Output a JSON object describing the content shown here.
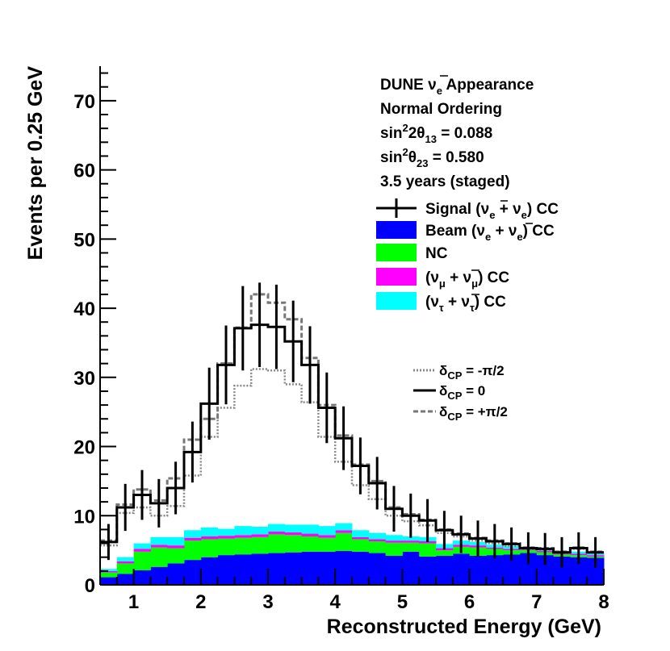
{
  "chart_data": {
    "type": "histogram",
    "title": "DUNE ν̄e Appearance",
    "xlabel": "Reconstructed Energy (GeV)",
    "ylabel": "Events per 0.25 GeV",
    "xlim": [
      0.5,
      8
    ],
    "ylim": [
      0,
      75
    ],
    "x_ticks": [
      "1",
      "2",
      "3",
      "4",
      "5",
      "6",
      "7",
      "8"
    ],
    "y_ticks": [
      "0",
      "10",
      "20",
      "30",
      "40",
      "50",
      "60",
      "70"
    ],
    "bin_width": 0.25,
    "bin_edges_start": 0.5,
    "info": {
      "line1_main": "DUNE ",
      "line1_nu": "ν",
      "line1_sub": "e",
      "line1_rest": " Appearance",
      "line2": "Normal Ordering",
      "line3_a": "sin",
      "line3_sup": "2",
      "line3_b": "2θ",
      "line3_sub": "13",
      "line3_c": " = 0.088",
      "line4_a": "sin",
      "line4_sup": "2",
      "line4_b": "θ",
      "line4_sub": "23",
      "line4_c": " = 0.580",
      "line5": "3.5 years (staged)"
    },
    "legend": [
      {
        "key": "signal",
        "a": "Signal (",
        "nu1": "ν",
        "s1": "e",
        "mid": " + ",
        "nu2": "ν",
        "s2": "e",
        "end": ") CC",
        "color": "#000000"
      },
      {
        "key": "beam",
        "a": "Beam (",
        "nu1": "ν",
        "s1": "e",
        "mid": " + ",
        "nu2": "ν",
        "s2": "e",
        "end": ") CC",
        "color": "#0000ff"
      },
      {
        "key": "nc",
        "a": "NC",
        "nu1": "",
        "s1": "",
        "mid": "",
        "nu2": "",
        "s2": "",
        "end": "",
        "color": "#00ff00"
      },
      {
        "key": "numu",
        "a": "(",
        "nu1": "ν",
        "s1": "μ",
        "mid": " + ",
        "nu2": "ν",
        "s2": "μ",
        "end": ") CC",
        "color": "#ff00ff"
      },
      {
        "key": "nutau",
        "a": "(",
        "nu1": "ν",
        "s1": "τ",
        "mid": " + ",
        "nu2": "ν",
        "s2": "τ",
        "end": ") CC",
        "color": "#00ffff"
      }
    ],
    "delta_legend": [
      {
        "key": "minus",
        "delta": "δ",
        "sub": "CP",
        "rest": " = -π/2",
        "style": "dotted"
      },
      {
        "key": "zero",
        "delta": "δ",
        "sub": "CP",
        "rest": " = 0",
        "style": "solid"
      },
      {
        "key": "plus",
        "delta": "δ",
        "sub": "CP",
        "rest": " = +π/2",
        "style": "dashed"
      }
    ],
    "series": [
      {
        "name": "Beam (νe + ν̄e) CC",
        "color": "#0000ff",
        "values": [
          1.1,
          1.6,
          2.1,
          2.6,
          3.1,
          3.6,
          4.0,
          4.3,
          4.4,
          4.5,
          4.6,
          4.7,
          4.8,
          4.8,
          4.9,
          4.8,
          4.6,
          4.2,
          4.8,
          4.1,
          4.2,
          4.5,
          4.2,
          4.3,
          4.4,
          4.6,
          4.3,
          4.1,
          4.0,
          3.9
        ]
      },
      {
        "name": "NC",
        "color": "#00ff00",
        "values": [
          0.7,
          1.5,
          2.7,
          2.8,
          2.2,
          2.8,
          2.6,
          2.4,
          2.4,
          2.4,
          2.7,
          2.5,
          2.2,
          2.0,
          2.6,
          1.8,
          1.7,
          1.9,
          1.3,
          1.9,
          0.8,
          1.0,
          1.2,
          0.9,
          0.6,
          0.4,
          0.4,
          0.3,
          0.3,
          0.2
        ]
      },
      {
        "name": "(νμ + ν̄μ) CC",
        "color": "#ff00ff",
        "values": [
          0.2,
          0.3,
          0.4,
          0.4,
          0.4,
          0.4,
          0.4,
          0.4,
          0.4,
          0.4,
          0.4,
          0.4,
          0.4,
          0.4,
          0.4,
          0.3,
          0.3,
          0.3,
          0.3,
          0.3,
          0.3,
          0.3,
          0.3,
          0.2,
          0.2,
          0.2,
          0.2,
          0.2,
          0.2,
          0.2
        ]
      },
      {
        "name": "(ντ + ν̄τ) CC",
        "color": "#00ffff",
        "values": [
          0.3,
          0.6,
          0.8,
          1.1,
          1.2,
          1.1,
          1.3,
          1.0,
          1.3,
          1.1,
          1.1,
          1.1,
          1.3,
          1.3,
          1.0,
          1.0,
          0.9,
          0.8,
          0.6,
          0.6,
          0.6,
          0.6,
          0.5,
          0.4,
          0.4,
          0.3,
          0.3,
          0.3,
          0.3,
          0.3
        ]
      }
    ],
    "signal_total": [
      6.2,
      11.2,
      13.0,
      11.8,
      14.0,
      19.2,
      26.2,
      31.8,
      37.1,
      37.6,
      37.3,
      35.2,
      31.8,
      25.6,
      21.2,
      17.2,
      14.7,
      11.0,
      10.0,
      9.3,
      7.9,
      7.3,
      6.7,
      6.3,
      5.9,
      5.3,
      5.2,
      4.7,
      5.3,
      4.7
    ],
    "errors": [
      2.6,
      3.4,
      3.6,
      3.5,
      3.8,
      4.4,
      5.2,
      5.7,
      6.1,
      6.1,
      6.1,
      5.9,
      5.6,
      5.1,
      4.6,
      4.1,
      3.8,
      3.3,
      3.2,
      3.1,
      2.8,
      2.7,
      2.6,
      2.5,
      2.4,
      2.3,
      2.3,
      2.2,
      2.3,
      2.2
    ],
    "dcp_minus_total": [
      5.7,
      10.4,
      11.2,
      10.0,
      11.4,
      15.8,
      21.4,
      25.6,
      28.8,
      31.2,
      31.0,
      29.0,
      26.4,
      21.4,
      17.8,
      14.4,
      12.4,
      10.0,
      9.2,
      8.6,
      7.5,
      7.0,
      6.4,
      6.0,
      5.6,
      5.1,
      5.0,
      4.5,
      5.2,
      4.6
    ],
    "dcp_plus_total": [
      6.4,
      11.6,
      13.8,
      12.2,
      15.4,
      21.0,
      24.0,
      32.0,
      37.2,
      42.0,
      40.8,
      38.4,
      32.8,
      26.0,
      21.6,
      17.4,
      15.0,
      11.2,
      10.2,
      9.4,
      8.0,
      7.4,
      6.8,
      6.4,
      6.0,
      5.4,
      5.3,
      4.8,
      5.4,
      4.8
    ]
  }
}
